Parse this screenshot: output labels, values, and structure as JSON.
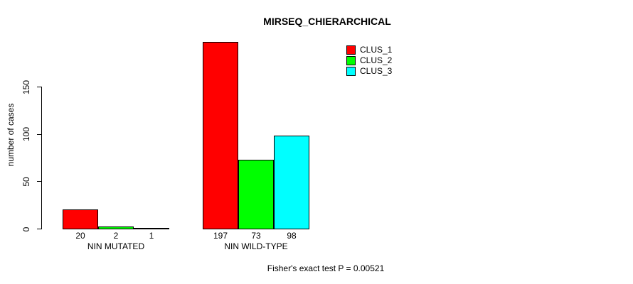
{
  "chart_data": {
    "type": "bar",
    "title": "MIRSEQ_CHIERARCHICAL",
    "xlabel": "",
    "ylabel": "number of cases",
    "ylim": [
      0,
      205
    ],
    "yticks": [
      0,
      50,
      100,
      150
    ],
    "grid": false,
    "legend_position": "top-right",
    "categories": [
      "NIN MUTATED",
      "NIN WILD-TYPE"
    ],
    "series": [
      {
        "name": "CLUS_1",
        "color": "#ff0000",
        "values": [
          20,
          197
        ]
      },
      {
        "name": "CLUS_2",
        "color": "#00ff00",
        "values": [
          2,
          73
        ]
      },
      {
        "name": "CLUS_3",
        "color": "#00ffff",
        "values": [
          1,
          98
        ]
      }
    ],
    "bar_value_labels": [
      [
        "20",
        "2",
        "1"
      ],
      [
        "197",
        "73",
        "98"
      ]
    ],
    "annotation": "Fisher's exact test P = 0.00521"
  },
  "colors": {
    "background": "#ffffff",
    "axis": "#000000",
    "text": "#000000"
  }
}
